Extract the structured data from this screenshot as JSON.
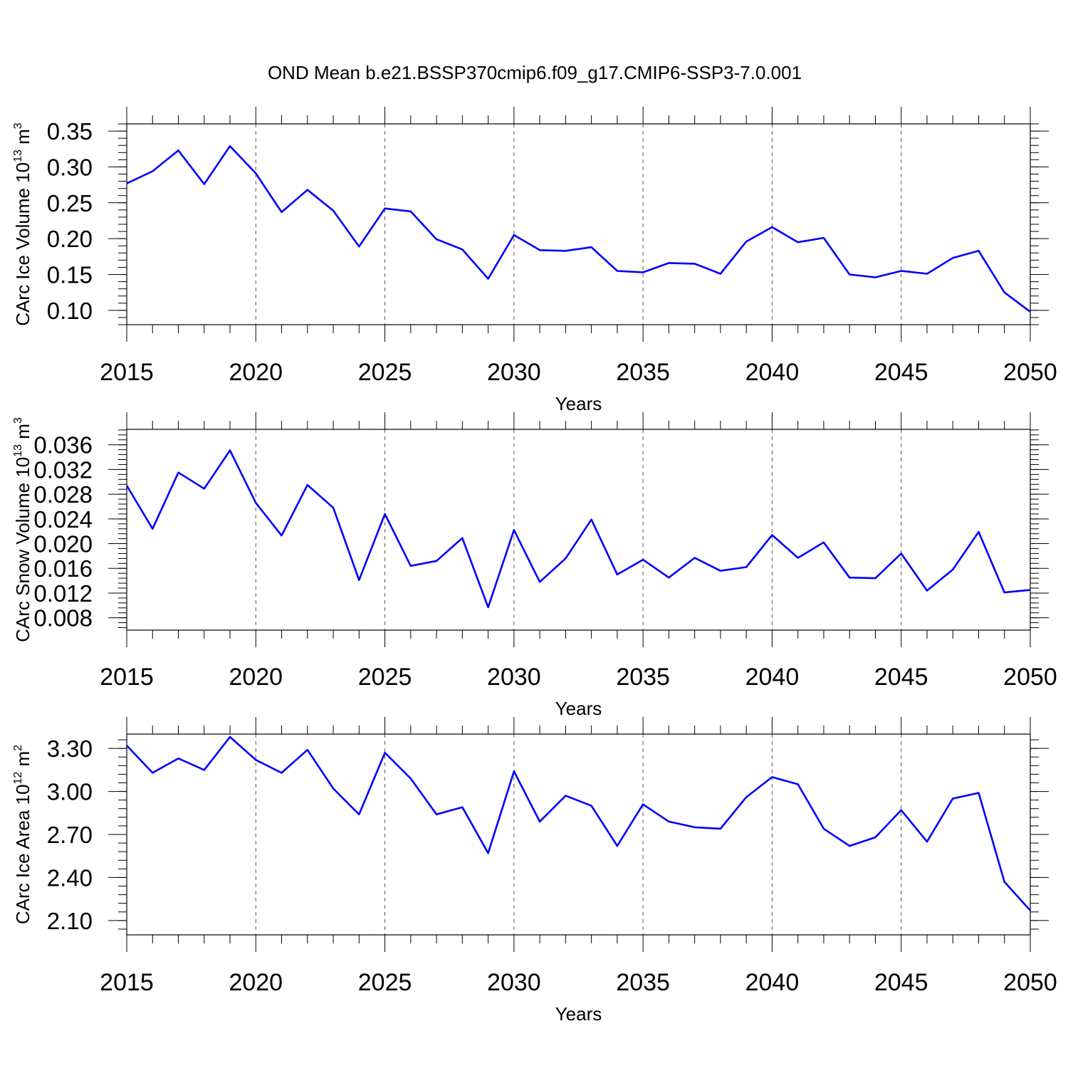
{
  "title": "OND Mean b.e21.BSSP370cmip6.f09_g17.CMIP6-SSP3-7.0.001",
  "colors": {
    "line": "#0000ff",
    "axis": "#000000",
    "grid": "#555555"
  },
  "chart_data": [
    {
      "type": "line",
      "xlabel": "Years",
      "ylabel": {
        "base": "CArc Ice Volume 10",
        "exp": "13",
        "unit": " m",
        "unit_exp": "3"
      },
      "xlim": [
        2015,
        2050
      ],
      "ylim": [
        0.08,
        0.36
      ],
      "grid": "vertical dashed at major x ticks",
      "x_ticks": [
        2015,
        2020,
        2025,
        2030,
        2035,
        2040,
        2045,
        2050
      ],
      "x_tick_labels": [
        "2015",
        "2020",
        "2025",
        "2030",
        "2035",
        "2040",
        "2045",
        "2050"
      ],
      "y_ticks": [
        0.1,
        0.15,
        0.2,
        0.25,
        0.3,
        0.35
      ],
      "y_tick_labels": [
        "0.10",
        "0.15",
        "0.20",
        "0.25",
        "0.30",
        "0.35"
      ],
      "x": [
        2015,
        2016,
        2017,
        2018,
        2019,
        2020,
        2021,
        2022,
        2023,
        2024,
        2025,
        2026,
        2027,
        2028,
        2029,
        2030,
        2031,
        2032,
        2033,
        2034,
        2035,
        2036,
        2037,
        2038,
        2039,
        2040,
        2041,
        2042,
        2043,
        2044,
        2045,
        2046,
        2047,
        2048,
        2049,
        2050
      ],
      "values": [
        0.277,
        0.294,
        0.323,
        0.276,
        0.329,
        0.291,
        0.237,
        0.268,
        0.239,
        0.189,
        0.242,
        0.238,
        0.199,
        0.185,
        0.144,
        0.205,
        0.184,
        0.183,
        0.188,
        0.155,
        0.153,
        0.166,
        0.165,
        0.151,
        0.196,
        0.216,
        0.195,
        0.201,
        0.15,
        0.146,
        0.155,
        0.151,
        0.173,
        0.183,
        0.125,
        0.098
      ]
    },
    {
      "type": "line",
      "xlabel": "Years",
      "ylabel": {
        "base": "CArc Snow Volume 10",
        "exp": "13",
        "unit": " m",
        "unit_exp": "3"
      },
      "xlim": [
        2015,
        2050
      ],
      "ylim": [
        0.006,
        0.0385
      ],
      "grid": "vertical dashed at major x ticks",
      "x_ticks": [
        2015,
        2020,
        2025,
        2030,
        2035,
        2040,
        2045,
        2050
      ],
      "x_tick_labels": [
        "2015",
        "2020",
        "2025",
        "2030",
        "2035",
        "2040",
        "2045",
        "2050"
      ],
      "y_ticks": [
        0.008,
        0.012,
        0.016,
        0.02,
        0.024,
        0.028,
        0.032,
        0.036
      ],
      "y_tick_labels": [
        "0.008",
        "0.012",
        "0.016",
        "0.020",
        "0.024",
        "0.028",
        "0.032",
        "0.036"
      ],
      "x": [
        2015,
        2016,
        2017,
        2018,
        2019,
        2020,
        2021,
        2022,
        2023,
        2024,
        2025,
        2026,
        2027,
        2028,
        2029,
        2030,
        2031,
        2032,
        2033,
        2034,
        2035,
        2036,
        2037,
        2038,
        2039,
        2040,
        2041,
        2042,
        2043,
        2044,
        2045,
        2046,
        2047,
        2048,
        2049,
        2050
      ],
      "values": [
        0.0294,
        0.0224,
        0.0315,
        0.0289,
        0.0351,
        0.0266,
        0.0213,
        0.0295,
        0.0258,
        0.0141,
        0.0248,
        0.0164,
        0.0172,
        0.0209,
        0.0097,
        0.0222,
        0.0138,
        0.0176,
        0.0239,
        0.015,
        0.0174,
        0.0145,
        0.0177,
        0.0156,
        0.0162,
        0.0214,
        0.0177,
        0.0202,
        0.0145,
        0.0144,
        0.0184,
        0.0124,
        0.0158,
        0.0219,
        0.0121,
        0.0125
      ]
    },
    {
      "type": "line",
      "xlabel": "Years",
      "ylabel": {
        "base": "CArc Ice Area 10",
        "exp": "12",
        "unit": " m",
        "unit_exp": "2"
      },
      "xlim": [
        2015,
        2050
      ],
      "ylim": [
        2.0,
        3.4
      ],
      "grid": "vertical dashed at major x ticks",
      "x_ticks": [
        2015,
        2020,
        2025,
        2030,
        2035,
        2040,
        2045,
        2050
      ],
      "x_tick_labels": [
        "2015",
        "2020",
        "2025",
        "2030",
        "2035",
        "2040",
        "2045",
        "2050"
      ],
      "y_ticks": [
        2.1,
        2.4,
        2.7,
        3.0,
        3.3
      ],
      "y_tick_labels": [
        "2.10",
        "2.40",
        "2.70",
        "3.00",
        "3.30"
      ],
      "x": [
        2015,
        2016,
        2017,
        2018,
        2019,
        2020,
        2021,
        2022,
        2023,
        2024,
        2025,
        2026,
        2027,
        2028,
        2029,
        2030,
        2031,
        2032,
        2033,
        2034,
        2035,
        2036,
        2037,
        2038,
        2039,
        2040,
        2041,
        2042,
        2043,
        2044,
        2045,
        2046,
        2047,
        2048,
        2049,
        2050
      ],
      "values": [
        3.32,
        3.13,
        3.23,
        3.15,
        3.38,
        3.22,
        3.13,
        3.29,
        3.02,
        2.84,
        3.27,
        3.09,
        2.84,
        2.89,
        2.57,
        3.14,
        2.79,
        2.97,
        2.9,
        2.62,
        2.91,
        2.79,
        2.75,
        2.74,
        2.96,
        3.1,
        3.05,
        2.74,
        2.62,
        2.68,
        2.87,
        2.65,
        2.95,
        2.99,
        2.37,
        2.17
      ]
    }
  ]
}
